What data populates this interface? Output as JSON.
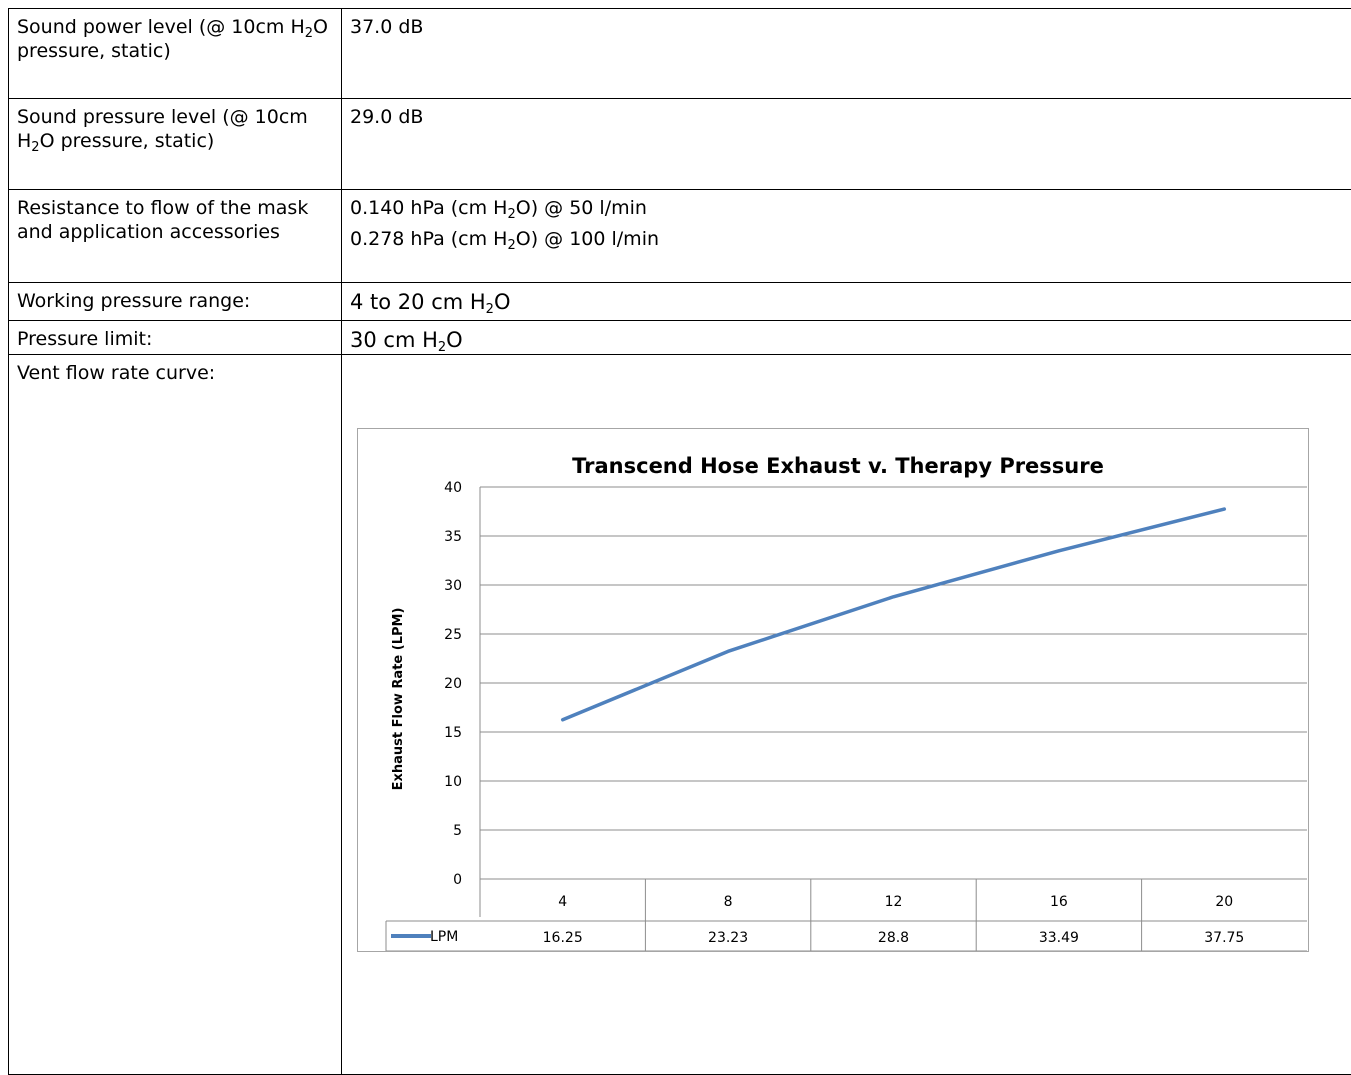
{
  "rows": [
    {
      "label_pre": "Sound power level (@ 10cm H",
      "label_sub": "2",
      "label_post": "O pressure, static)",
      "value": "37.0 dB"
    },
    {
      "label_pre": "Sound pressure level (@ 10cm H",
      "label_sub": "2",
      "label_post": "O pressure, static)",
      "value": "29.0 dB"
    },
    {
      "label": "Resistance to flow of the mask and application accessories",
      "value1_pre": "0.140 hPa (cm H",
      "value1_sub": "2",
      "value1_post": "O) @ 50 l/min",
      "value2_pre": "0.278 hPa (cm  H",
      "value2_sub": "2",
      "value2_post": "O) @ 100 l/min"
    },
    {
      "label": "Working pressure range:",
      "value_pre": "4 to 20 cm H",
      "value_sub": "2",
      "value_post": "O"
    },
    {
      "label": "Pressure limit:",
      "value_pre": "30 cm H",
      "value_sub": "2",
      "value_post": "O"
    },
    {
      "label": "Vent flow rate curve:"
    }
  ],
  "chart_data": {
    "type": "line",
    "title": "Transcend Hose Exhaust v. Therapy Pressure",
    "ylabel": "Exhaust  Flow  Rate  (LPM)",
    "xlabel": "",
    "categories": [
      "4",
      "8",
      "12",
      "16",
      "20"
    ],
    "series": [
      {
        "name": "LPM",
        "values": [
          16.25,
          23.23,
          28.8,
          33.49,
          37.75
        ],
        "color": "#4f81bd"
      }
    ],
    "value_labels": [
      "16.25",
      "23.23",
      "28.8",
      "33.49",
      "37.75"
    ],
    "ylim": [
      0,
      40
    ],
    "yticks": [
      0,
      5,
      10,
      15,
      20,
      25,
      30,
      35,
      40
    ],
    "grid": true,
    "data_table": true
  }
}
